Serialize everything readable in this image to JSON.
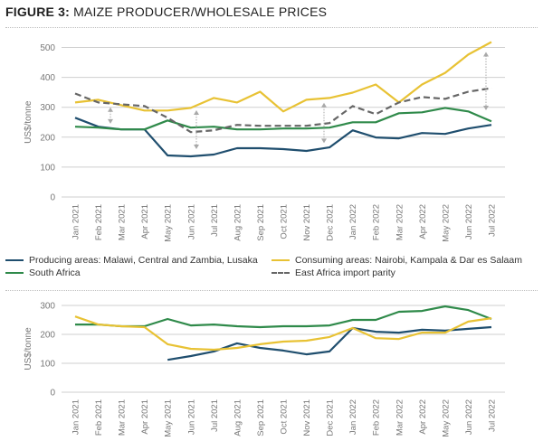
{
  "figure": {
    "title_prefix": "FIGURE 3:",
    "title_text": " MAIZE PRODUCER/WHOLESALE PRICES"
  },
  "colors": {
    "producing": "#1f4e6e",
    "south_africa": "#2f8a4a",
    "consuming": "#e8c234",
    "import_parity": "#666666",
    "grid": "#cfcfcf",
    "arrow": "#a9a9a9",
    "tick_text": "#777777"
  },
  "legend": [
    {
      "key": "producing",
      "label": "Producing areas: Malawi, Central and Zambia, Lusaka",
      "style": "solid"
    },
    {
      "key": "consuming",
      "label": "Consuming areas: Nairobi, Kampala & Dar es Salaam",
      "style": "solid"
    },
    {
      "key": "south_africa",
      "label": "South Africa",
      "style": "solid"
    },
    {
      "key": "import_parity",
      "label": "East Africa import parity",
      "style": "dashed"
    }
  ],
  "chart_data": [
    {
      "type": "line",
      "title": "",
      "xlabel": "",
      "ylabel": "US$/tonne",
      "ylim": [
        0,
        500
      ],
      "yticks": [
        0,
        100,
        200,
        300,
        400,
        500
      ],
      "grid": true,
      "legend_position": "bottom",
      "categories": [
        "Jan 2021",
        "Feb 2021",
        "Mar 2021",
        "Apr 2021",
        "May 2021",
        "Jun 2021",
        "Jul 2021",
        "Aug 2021",
        "Sep 2021",
        "Oct 2021",
        "Nov 2021",
        "Dec 2021",
        "Jan 2022",
        "Feb 2022",
        "Mar 2022",
        "Apr 2022",
        "May 2022",
        "Jun 2022",
        "Jul 2022"
      ],
      "series": [
        {
          "name": "Producing areas: Malawi, Central and Zambia, Lusaka",
          "key": "producing",
          "style": "solid",
          "values": [
            265,
            235,
            226,
            226,
            139,
            136,
            142,
            163,
            163,
            160,
            154,
            166,
            223,
            199,
            196,
            214,
            211,
            229,
            241
          ]
        },
        {
          "name": "South Africa",
          "key": "south_africa",
          "style": "solid",
          "values": [
            235,
            232,
            226,
            226,
            256,
            232,
            235,
            226,
            226,
            229,
            229,
            232,
            250,
            250,
            280,
            283,
            298,
            286,
            253
          ]
        },
        {
          "name": "Consuming areas: Nairobi, Kampala & Dar es Salaam",
          "key": "consuming",
          "style": "solid",
          "values": [
            316,
            325,
            307,
            289,
            289,
            298,
            331,
            316,
            352,
            286,
            325,
            331,
            349,
            376,
            316,
            376,
            415,
            476,
            518
          ]
        },
        {
          "name": "East Africa import parity",
          "key": "import_parity",
          "style": "dashed",
          "values": [
            346,
            316,
            310,
            304,
            265,
            217,
            223,
            241,
            238,
            238,
            238,
            247,
            304,
            277,
            316,
            334,
            328,
            352,
            364
          ]
        }
      ],
      "annotations": [
        {
          "type": "double-arrow",
          "at": "Feb-Mar 2021",
          "from": 300,
          "to": 245
        },
        {
          "type": "double-arrow",
          "at": "Jun 2021",
          "from": 290,
          "to": 160
        },
        {
          "type": "double-arrow",
          "at": "Dec 2021",
          "from": 315,
          "to": 180
        },
        {
          "type": "double-arrow",
          "at": "Jul 2022",
          "from": 485,
          "to": 290
        }
      ]
    },
    {
      "type": "line",
      "title": "",
      "xlabel": "",
      "ylabel": "US$/tonne",
      "ylim": [
        0,
        300
      ],
      "yticks": [
        0,
        100,
        200,
        300
      ],
      "grid": true,
      "categories": [
        "Jan 2021",
        "Feb 2021",
        "Mar 2021",
        "Apr 2021",
        "May 2021",
        "Jun 2021",
        "Jul 2021",
        "Aug 2021",
        "Sep 2021",
        "Oct 2021",
        "Nov 2021",
        "Dec 2021",
        "Jan 2022",
        "Feb 2022",
        "Mar 2022",
        "Apr 2022",
        "May 2022",
        "Jun 2022",
        "Jul 2022"
      ],
      "series": [
        {
          "name": "Producing areas",
          "key": "producing",
          "style": "solid",
          "values": [
            null,
            null,
            null,
            null,
            112,
            125,
            141,
            169,
            153,
            144,
            131,
            141,
            222,
            209,
            206,
            216,
            213,
            219,
            225
          ]
        },
        {
          "name": "South Africa",
          "key": "south_africa",
          "style": "solid",
          "values": [
            234,
            234,
            228,
            228,
            253,
            231,
            234,
            228,
            225,
            228,
            228,
            231,
            250,
            250,
            278,
            281,
            297,
            284,
            253
          ]
        },
        {
          "name": "Consuming areas",
          "key": "consuming",
          "style": "solid",
          "values": [
            262,
            234,
            228,
            225,
            166,
            150,
            147,
            153,
            166,
            175,
            178,
            191,
            222,
            187,
            184,
            206,
            206,
            244,
            256
          ]
        }
      ]
    }
  ]
}
